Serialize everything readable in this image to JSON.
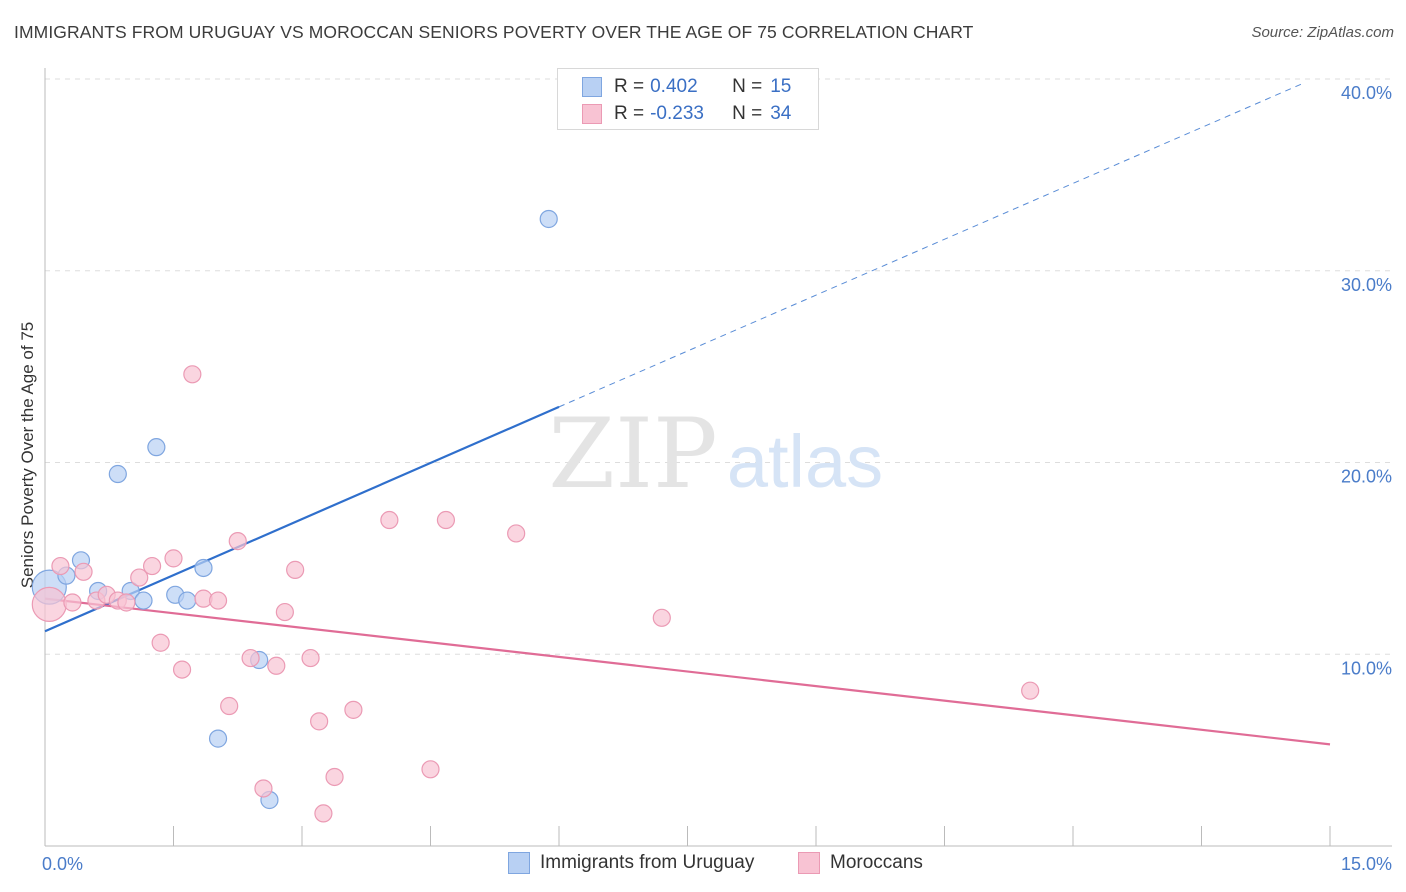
{
  "title": "IMMIGRANTS FROM URUGUAY VS MOROCCAN SENIORS POVERTY OVER THE AGE OF 75 CORRELATION CHART",
  "source": "Source: ZipAtlas.com",
  "watermark": {
    "zip": "ZIP",
    "atlas": "atlas"
  },
  "colors": {
    "blue_fill": "#b8d0f3",
    "blue_stroke": "#7fa6e0",
    "blue_line": "#2f6fcc",
    "pink_fill": "#f8c3d3",
    "pink_stroke": "#eb9ab4",
    "pink_line": "#e06c96",
    "tick_text": "#4a7cc9",
    "grid": "#dddddd"
  },
  "legend": {
    "rows": [
      {
        "r_label": "R = ",
        "r_value": "0.402",
        "n_label": "N = ",
        "n_value": "15"
      },
      {
        "r_label": "R = ",
        "r_value": "-0.233",
        "n_label": "N = ",
        "n_value": "34"
      }
    ]
  },
  "chart_data": {
    "type": "scatter",
    "title": "IMMIGRANTS FROM URUGUAY VS MOROCCAN SENIORS POVERTY OVER THE AGE OF 75 CORRELATION CHART",
    "xlabel": "",
    "ylabel": "Seniors Poverty Over the Age of 75",
    "xlim": [
      0,
      15
    ],
    "ylim": [
      0,
      40
    ],
    "x_tick_labels": [
      {
        "value": 0,
        "label": "0.0%"
      },
      {
        "value": 15,
        "label": "15.0%"
      }
    ],
    "y_tick_labels": [
      {
        "value": 10,
        "label": "10.0%"
      },
      {
        "value": 20,
        "label": "20.0%"
      },
      {
        "value": 30,
        "label": "30.0%"
      },
      {
        "value": 40,
        "label": "40.0%"
      }
    ],
    "grid": "horizontal dashed",
    "legend_position": "bottom",
    "series": [
      {
        "name": "Immigrants from Uruguay",
        "color": "blue",
        "points": [
          {
            "x": 0.05,
            "y": 13.5,
            "big": true
          },
          {
            "x": 0.25,
            "y": 14.1
          },
          {
            "x": 0.42,
            "y": 14.9
          },
          {
            "x": 0.62,
            "y": 13.3
          },
          {
            "x": 0.85,
            "y": 19.4
          },
          {
            "x": 1.0,
            "y": 13.3
          },
          {
            "x": 1.15,
            "y": 12.8
          },
          {
            "x": 1.3,
            "y": 20.8
          },
          {
            "x": 1.52,
            "y": 13.1
          },
          {
            "x": 1.66,
            "y": 12.8
          },
          {
            "x": 1.85,
            "y": 14.5
          },
          {
            "x": 2.02,
            "y": 5.6
          },
          {
            "x": 2.5,
            "y": 9.7
          },
          {
            "x": 2.62,
            "y": 2.4
          },
          {
            "x": 5.88,
            "y": 32.7
          }
        ],
        "trend": {
          "x0": 0,
          "y0": 11.2,
          "x1": 6.0,
          "y1": 22.9,
          "dash_to_x": 14.7,
          "dash_to_y": 39.8
        }
      },
      {
        "name": "Moroccans",
        "color": "pink",
        "points": [
          {
            "x": 0.05,
            "y": 12.6,
            "big": true
          },
          {
            "x": 0.18,
            "y": 14.6
          },
          {
            "x": 0.32,
            "y": 12.7
          },
          {
            "x": 0.45,
            "y": 14.3
          },
          {
            "x": 0.6,
            "y": 12.8
          },
          {
            "x": 0.72,
            "y": 13.1
          },
          {
            "x": 0.85,
            "y": 12.8
          },
          {
            "x": 1.1,
            "y": 14.0
          },
          {
            "x": 1.25,
            "y": 14.6
          },
          {
            "x": 1.35,
            "y": 10.6
          },
          {
            "x": 1.5,
            "y": 15.0
          },
          {
            "x": 1.6,
            "y": 9.2
          },
          {
            "x": 1.72,
            "y": 24.6
          },
          {
            "x": 1.85,
            "y": 12.9
          },
          {
            "x": 2.02,
            "y": 12.8
          },
          {
            "x": 2.15,
            "y": 7.3
          },
          {
            "x": 2.25,
            "y": 15.9
          },
          {
            "x": 2.4,
            "y": 9.8
          },
          {
            "x": 2.55,
            "y": 3.0
          },
          {
            "x": 2.7,
            "y": 9.4
          },
          {
            "x": 2.8,
            "y": 12.2
          },
          {
            "x": 2.92,
            "y": 14.4
          },
          {
            "x": 3.1,
            "y": 9.8
          },
          {
            "x": 3.2,
            "y": 6.5
          },
          {
            "x": 3.25,
            "y": 1.7
          },
          {
            "x": 3.38,
            "y": 3.6
          },
          {
            "x": 3.6,
            "y": 7.1
          },
          {
            "x": 4.02,
            "y": 17.0
          },
          {
            "x": 4.5,
            "y": 4.0
          },
          {
            "x": 4.68,
            "y": 17.0
          },
          {
            "x": 5.5,
            "y": 16.3
          },
          {
            "x": 7.2,
            "y": 11.9
          },
          {
            "x": 11.5,
            "y": 8.1
          },
          {
            "x": 0.95,
            "y": 12.7
          }
        ],
        "trend": {
          "x0": 0,
          "y0": 12.9,
          "x1": 15.0,
          "y1": 5.3
        }
      }
    ]
  },
  "bottom_legend": {
    "items": [
      {
        "label": "Immigrants from Uruguay"
      },
      {
        "label": "Moroccans"
      }
    ]
  }
}
